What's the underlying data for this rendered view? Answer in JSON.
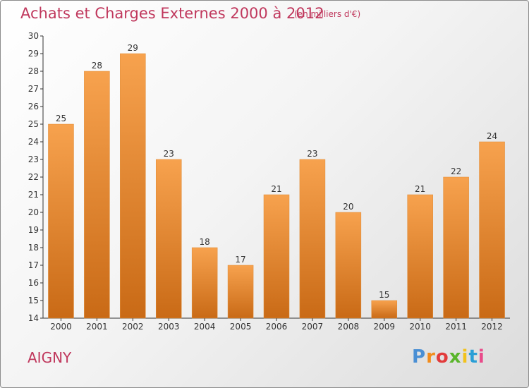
{
  "chart_data": {
    "type": "bar",
    "title": "Achats et Charges Externes 2000 à 2012",
    "subtitle": "(en milliers d'€)",
    "xlabel": "",
    "ylabel": "",
    "categories": [
      "2000",
      "2001",
      "2002",
      "2003",
      "2004",
      "2005",
      "2006",
      "2007",
      "2008",
      "2009",
      "2010",
      "2011",
      "2012"
    ],
    "values": [
      25,
      28,
      29,
      23,
      18,
      17,
      21,
      23,
      20,
      15,
      21,
      22,
      24
    ],
    "ylim": [
      14,
      30
    ],
    "yticks": [
      "14",
      "15",
      "16",
      "17",
      "18",
      "19",
      "20",
      "21",
      "22",
      "23",
      "24",
      "25",
      "26",
      "27",
      "28",
      "29",
      "30"
    ],
    "grid": false,
    "bar_color": "#f0923a",
    "bar_color_dark": "#c96a16"
  },
  "footer": {
    "commune": "AIGNY",
    "logo_letters": [
      "P",
      "r",
      "o",
      "x",
      "i",
      "t",
      "i"
    ],
    "logo_colors": [
      "#4a8fd4",
      "#f28c1c",
      "#e23b3b",
      "#5ab52b",
      "#f2c21c",
      "#2a9fd6",
      "#e94b8a"
    ]
  }
}
